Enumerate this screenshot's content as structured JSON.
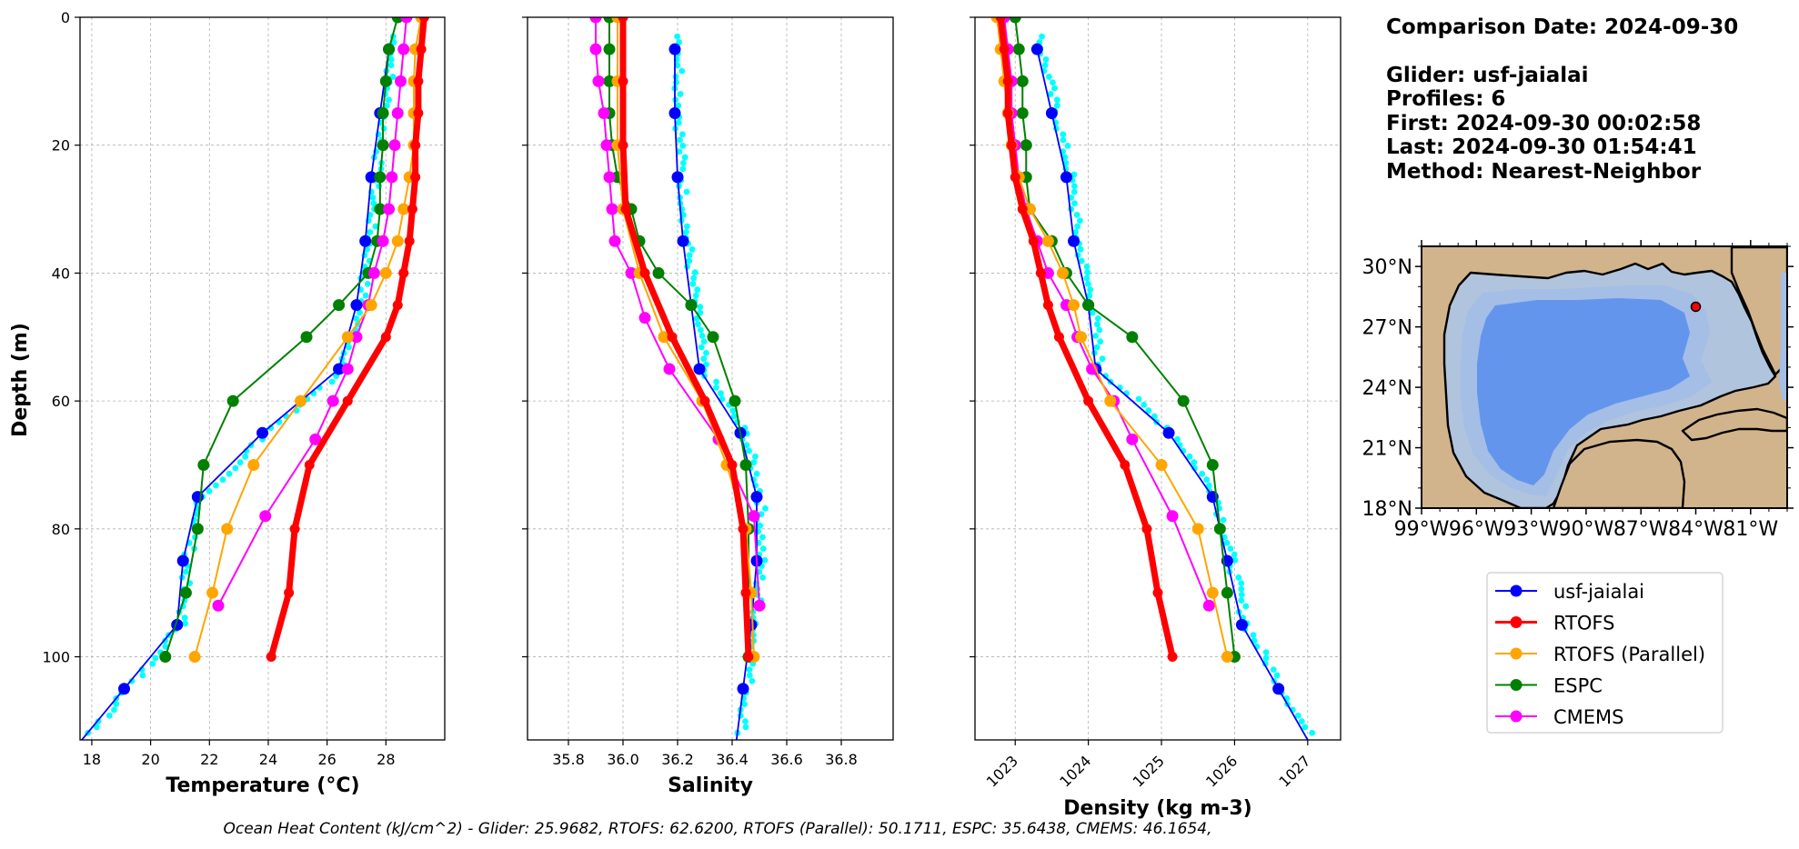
{
  "header": {
    "comparison_date": "Comparison Date: 2024-09-30",
    "glider": "Glider: usf-jaialai",
    "profiles": "Profiles: 6",
    "first": "First: 2024-09-30 00:02:58",
    "last": "Last: 2024-09-30 01:54:41",
    "method": "Method: Nearest-Neighbor"
  },
  "footer": "Ocean Heat Content (kJ/cm^2) - Glider: 25.9682,  RTOFS: 62.6200,  RTOFS (Parallel): 50.1711,  ESPC: 35.6438,  CMEMS: 46.1654,",
  "colors": {
    "usf-jaialai": "#0000ff",
    "RTOFS": "#ff0000",
    "RTOFS (Parallel)": "#ffa500",
    "ESPC": "#008000",
    "CMEMS": "#ff00ff",
    "glider_points": "#00ffff",
    "land": "#d2b48c",
    "shelf": "#b0c4de",
    "slope": "#a4bee6",
    "deep": "#6495ed"
  },
  "map": {
    "lat_ticks": [
      "30°N",
      "27°N",
      "24°N",
      "21°N",
      "18°N"
    ],
    "lon_ticks": [
      "99°W",
      "96°W",
      "93°W",
      "90°W",
      "87°W",
      "84°W",
      "81°W"
    ],
    "glider_position": {
      "lon": -84.0,
      "lat": 28.0
    }
  },
  "chart_data": [
    {
      "type": "line",
      "title": "",
      "xlabel": "Temperature (°C)",
      "ylabel": "Depth (m)",
      "xlim": [
        17.6,
        30.0
      ],
      "ylim": [
        113,
        0
      ],
      "x_ticks": [
        18,
        20,
        22,
        24,
        26,
        28
      ],
      "y_ticks": [
        0,
        20,
        40,
        60,
        80,
        100
      ],
      "grid": true,
      "series": [
        {
          "name": "usf-jaialai",
          "depth": [
            5,
            15,
            25,
            35,
            45,
            55,
            65,
            75,
            85,
            95,
            105
          ],
          "values": [
            28.1,
            27.8,
            27.5,
            27.3,
            27.0,
            26.4,
            23.8,
            21.6,
            21.1,
            20.9,
            19.1
          ]
        },
        {
          "name": "RTOFS",
          "depth": [
            0,
            5,
            10,
            15,
            20,
            25,
            30,
            35,
            40,
            45,
            50,
            60,
            70,
            80,
            90,
            100
          ],
          "values": [
            29.3,
            29.2,
            29.1,
            29.1,
            29.0,
            29.0,
            28.9,
            28.8,
            28.6,
            28.4,
            28.0,
            26.7,
            25.4,
            24.9,
            24.7,
            24.1
          ]
        },
        {
          "name": "RTOFS (Parallel)",
          "depth": [
            0,
            5,
            10,
            15,
            20,
            25,
            30,
            35,
            40,
            45,
            50,
            60,
            70,
            80,
            90,
            100
          ],
          "values": [
            29.2,
            29.0,
            28.95,
            28.95,
            28.95,
            28.8,
            28.6,
            28.4,
            28.0,
            27.5,
            26.7,
            25.1,
            23.5,
            22.6,
            22.1,
            21.5
          ]
        },
        {
          "name": "ESPC",
          "depth": [
            0,
            5,
            10,
            15,
            20,
            25,
            30,
            35,
            40,
            45,
            50,
            60,
            70,
            80,
            90,
            100
          ],
          "values": [
            28.4,
            28.1,
            28.0,
            27.9,
            27.9,
            27.8,
            27.8,
            27.7,
            27.4,
            26.4,
            25.3,
            22.8,
            21.8,
            21.6,
            21.2,
            20.5
          ]
        },
        {
          "name": "CMEMS",
          "depth": [
            0,
            5,
            10,
            15,
            20,
            25,
            30,
            35,
            40,
            45,
            50,
            55,
            60,
            66,
            78,
            92
          ],
          "values": [
            28.7,
            28.6,
            28.5,
            28.4,
            28.3,
            28.2,
            28.1,
            27.9,
            27.6,
            27.4,
            27.0,
            26.7,
            26.2,
            25.6,
            23.9,
            22.3
          ]
        }
      ]
    },
    {
      "type": "line",
      "title": "",
      "xlabel": "Salinity",
      "ylabel": "",
      "xlim": [
        35.65,
        36.99
      ],
      "ylim": [
        113,
        0
      ],
      "x_ticks": [
        35.8,
        36.0,
        36.2,
        36.4,
        36.6,
        36.8
      ],
      "y_ticks": [
        0,
        20,
        40,
        60,
        80,
        100
      ],
      "grid": true,
      "series": [
        {
          "name": "usf-jaialai",
          "depth": [
            5,
            15,
            25,
            35,
            45,
            55,
            65,
            75,
            85,
            95,
            105
          ],
          "values": [
            36.19,
            36.19,
            36.2,
            36.22,
            36.25,
            36.28,
            36.43,
            36.49,
            36.49,
            36.47,
            36.44
          ]
        },
        {
          "name": "RTOFS",
          "depth": [
            0,
            10,
            20,
            30,
            40,
            50,
            60,
            70,
            80,
            90,
            100
          ],
          "values": [
            36.0,
            36.0,
            36.0,
            36.01,
            36.08,
            36.18,
            36.3,
            36.4,
            36.44,
            36.45,
            36.46
          ]
        },
        {
          "name": "RTOFS (Parallel)",
          "depth": [
            0,
            10,
            20,
            30,
            40,
            50,
            60,
            70,
            80,
            90,
            100
          ],
          "values": [
            35.98,
            35.98,
            35.98,
            36.0,
            36.06,
            36.15,
            36.29,
            36.38,
            36.45,
            36.47,
            36.48
          ]
        },
        {
          "name": "ESPC",
          "depth": [
            0,
            5,
            10,
            15,
            20,
            25,
            30,
            35,
            40,
            45,
            50,
            60,
            70,
            80,
            90,
            100
          ],
          "values": [
            35.95,
            35.95,
            35.95,
            35.95,
            35.96,
            35.98,
            36.03,
            36.06,
            36.13,
            36.25,
            36.33,
            36.41,
            36.45,
            36.46,
            36.46,
            36.46
          ]
        },
        {
          "name": "CMEMS",
          "depth": [
            0,
            5,
            10,
            15,
            20,
            25,
            30,
            35,
            40,
            47,
            55,
            66,
            78,
            92
          ],
          "values": [
            35.9,
            35.9,
            35.91,
            35.93,
            35.94,
            35.95,
            35.96,
            35.97,
            36.03,
            36.08,
            36.17,
            36.35,
            36.48,
            36.5
          ]
        }
      ]
    },
    {
      "type": "line",
      "title": "",
      "xlabel": "Density (kg m-3)",
      "ylabel": "",
      "xlim": [
        1022.45,
        1027.45
      ],
      "ylim": [
        113,
        0
      ],
      "x_ticks": [
        1023,
        1024,
        1025,
        1026,
        1027
      ],
      "y_ticks": [
        0,
        20,
        40,
        60,
        80,
        100
      ],
      "grid": true,
      "series": [
        {
          "name": "usf-jaialai",
          "depth": [
            5,
            15,
            25,
            35,
            45,
            55,
            65,
            75,
            85,
            95,
            105
          ],
          "values": [
            1023.3,
            1023.5,
            1023.7,
            1023.8,
            1024.0,
            1024.1,
            1025.1,
            1025.7,
            1025.9,
            1026.1,
            1026.6
          ]
        },
        {
          "name": "RTOFS",
          "depth": [
            0,
            5,
            10,
            15,
            20,
            25,
            30,
            35,
            40,
            45,
            50,
            60,
            70,
            80,
            90,
            100
          ],
          "values": [
            1022.8,
            1022.85,
            1022.9,
            1022.9,
            1022.95,
            1023.0,
            1023.1,
            1023.25,
            1023.35,
            1023.45,
            1023.6,
            1024.0,
            1024.5,
            1024.8,
            1024.95,
            1025.15
          ]
        },
        {
          "name": "RTOFS (Parallel)",
          "depth": [
            0,
            5,
            10,
            15,
            20,
            25,
            30,
            35,
            40,
            45,
            50,
            60,
            70,
            80,
            90,
            100
          ],
          "values": [
            1022.75,
            1022.8,
            1022.85,
            1022.9,
            1022.95,
            1023.05,
            1023.2,
            1023.45,
            1023.65,
            1023.8,
            1023.9,
            1024.3,
            1025.0,
            1025.5,
            1025.7,
            1025.9
          ]
        },
        {
          "name": "ESPC",
          "depth": [
            0,
            5,
            10,
            15,
            20,
            25,
            30,
            35,
            40,
            45,
            50,
            60,
            70,
            80,
            90,
            100
          ],
          "values": [
            1023.0,
            1023.05,
            1023.1,
            1023.1,
            1023.15,
            1023.15,
            1023.2,
            1023.5,
            1023.7,
            1024.0,
            1024.6,
            1025.3,
            1025.7,
            1025.8,
            1025.9,
            1026.0
          ]
        },
        {
          "name": "CMEMS",
          "depth": [
            0,
            5,
            10,
            15,
            20,
            25,
            30,
            35,
            40,
            45,
            50,
            55,
            60,
            66,
            78,
            92
          ],
          "values": [
            1022.85,
            1022.9,
            1022.95,
            1022.95,
            1023.0,
            1023.05,
            1023.15,
            1023.3,
            1023.45,
            1023.7,
            1023.85,
            1024.05,
            1024.35,
            1024.6,
            1025.15,
            1025.65
          ]
        }
      ]
    }
  ],
  "legend": {
    "placement": "below-map",
    "entries": [
      "usf-jaialai",
      "RTOFS",
      "RTOFS (Parallel)",
      "ESPC",
      "CMEMS"
    ]
  }
}
